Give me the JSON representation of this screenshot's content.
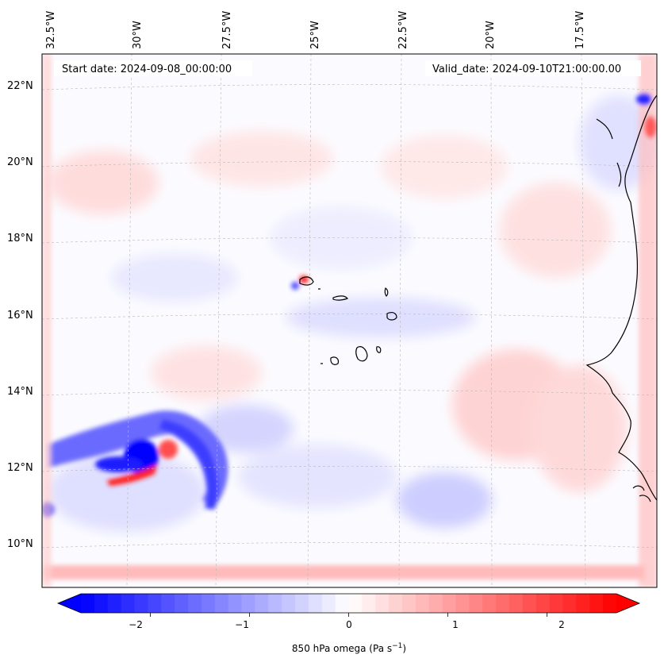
{
  "map": {
    "start_date_label": "Start date: 2024-09-08_00:00:00",
    "valid_date_label": "Valid_date: 2024-09-10T21:00:00.00",
    "lon_ticks": [
      "32.5°W",
      "30°W",
      "27.5°W",
      "25°W",
      "22.5°W",
      "20°W",
      "17.5°W"
    ],
    "lat_ticks": [
      "22°N",
      "20°N",
      "18°N",
      "16°N",
      "14°N",
      "12°N",
      "10°N"
    ],
    "gridlines": "dashed-light-gray",
    "field": "850 hPa omega",
    "colormap": "bwr"
  },
  "colorbar": {
    "ticks": [
      "−2",
      "−1",
      "0",
      "1",
      "2"
    ],
    "label_text": "850 hPa omega (Pa s",
    "label_sup": "−1",
    "label_tail": ")",
    "range": [
      -2.7,
      2.7
    ],
    "extend": "both",
    "colors": {
      "min": "#0000ff",
      "mid": "#ffffff",
      "max": "#ff0000"
    }
  }
}
